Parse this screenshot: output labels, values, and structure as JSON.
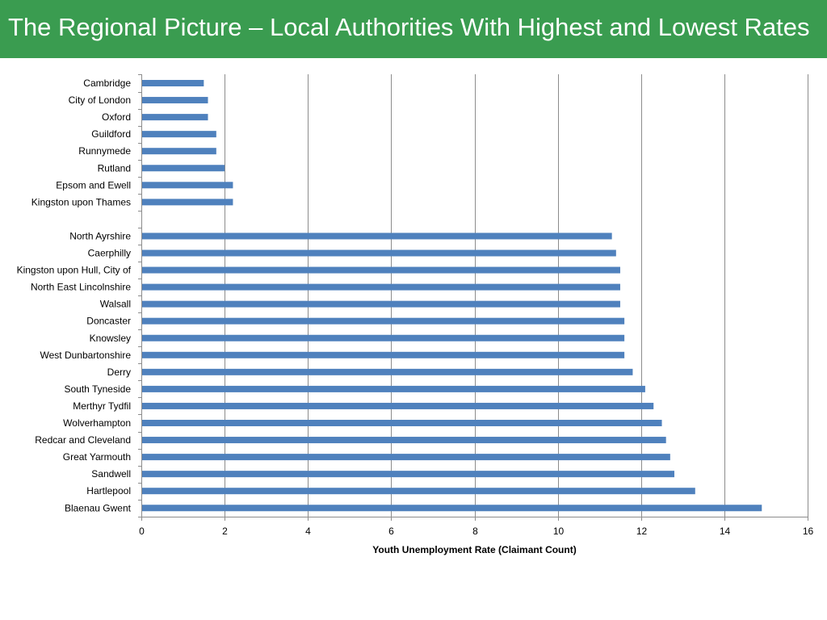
{
  "page": {
    "title": "The Regional Picture – Local Authorities With Highest and Lowest Rates"
  },
  "colors": {
    "title_bar": "#3a9c50",
    "bar": "#4f81bd",
    "gridline": "#8c8c8c"
  },
  "chart_data": {
    "type": "bar",
    "orientation": "horizontal",
    "title": "",
    "xlabel": "Youth Unemployment Rate (Claimant Count)",
    "ylabel": "",
    "xlim": [
      0,
      16
    ],
    "xticks": [
      0,
      2,
      4,
      6,
      8,
      10,
      12,
      14,
      16
    ],
    "grid": "vertical",
    "legend": "none",
    "categories": [
      "Cambridge",
      "City of London",
      "Oxford",
      "Guildford",
      "Runnymede",
      "Rutland",
      "Epsom and Ewell",
      "Kingston upon Thames",
      "",
      "North Ayrshire",
      "Caerphilly",
      "Kingston upon Hull, City of",
      "North East Lincolnshire",
      "Walsall",
      "Doncaster",
      "Knowsley",
      "West Dunbartonshire",
      "Derry",
      "South Tyneside",
      "Merthyr Tydfil",
      "Wolverhampton",
      "Redcar and Cleveland",
      "Great Yarmouth",
      "Sandwell",
      "Hartlepool",
      "Blaenau Gwent"
    ],
    "values": [
      1.5,
      1.6,
      1.6,
      1.8,
      1.8,
      2.0,
      2.2,
      2.2,
      null,
      11.3,
      11.4,
      11.5,
      11.5,
      11.5,
      11.6,
      11.6,
      11.6,
      11.8,
      12.1,
      12.3,
      12.5,
      12.6,
      12.7,
      12.8,
      13.3,
      14.9
    ]
  }
}
